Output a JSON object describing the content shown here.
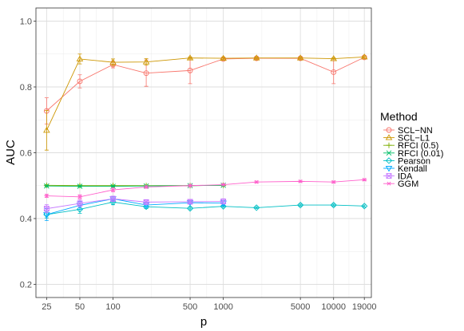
{
  "chart_data": {
    "type": "line",
    "xlabel": "p",
    "ylabel": "AUC",
    "x_scale": "log",
    "xlim": [
      20,
      22000
    ],
    "ylim": [
      0.16,
      1.04
    ],
    "x_ticks": [
      25,
      50,
      100,
      500,
      1000,
      5000,
      10000,
      19000
    ],
    "x_tick_labels": [
      "25",
      "50",
      "100",
      "500",
      "1000",
      "5000",
      "10000",
      "19000"
    ],
    "y_ticks": [
      0.2,
      0.4,
      0.6,
      0.8,
      1.0
    ],
    "y_tick_labels": [
      "0.2",
      "0.4",
      "0.6",
      "0.8",
      "1.0"
    ],
    "grid": true,
    "legend_position": "right",
    "legend_title": "Method",
    "series": [
      {
        "name": "SCL−NN",
        "color": "#F8766D",
        "marker": "circle",
        "x": [
          25,
          50,
          100,
          200,
          500,
          1000,
          2000,
          5000,
          10000,
          19000
        ],
        "y": [
          0.727,
          0.817,
          0.868,
          0.842,
          0.85,
          0.885,
          0.887,
          0.887,
          0.845,
          0.89
        ],
        "err": [
          0.04,
          0.02,
          0.01,
          0.04,
          0.04,
          0.004,
          0.004,
          0.004,
          0.035,
          0.004
        ]
      },
      {
        "name": "SCL−L1",
        "color": "#CD9600",
        "marker": "triangle",
        "x": [
          25,
          50,
          100,
          200,
          500,
          1000,
          2000,
          5000,
          10000,
          19000
        ],
        "y": [
          0.668,
          0.885,
          0.875,
          0.876,
          0.888,
          0.887,
          0.888,
          0.888,
          0.886,
          0.891
        ],
        "err": [
          0.06,
          0.015,
          0.01,
          0.01,
          0.003,
          0.003,
          0.003,
          0.003,
          0.003,
          0.003
        ]
      },
      {
        "name": "RFCI (0.5)",
        "color": "#7CAE00",
        "marker": "plus",
        "x": [
          25,
          50,
          100,
          200,
          500,
          1000
        ],
        "y": [
          0.501,
          0.5,
          0.5,
          0.5,
          0.5,
          0.501
        ],
        "err": [
          0.002,
          0.002,
          0.002,
          0.002,
          0.002,
          0.002
        ]
      },
      {
        "name": "RFCI (0.01)",
        "color": "#00BE67",
        "marker": "cross",
        "x": [
          25,
          50,
          100,
          200,
          500,
          1000
        ],
        "y": [
          0.499,
          0.498,
          0.498,
          0.499,
          0.5,
          0.501
        ],
        "err": [
          0.002,
          0.002,
          0.002,
          0.002,
          0.002,
          0.002
        ]
      },
      {
        "name": "Pearson",
        "color": "#00BFC4",
        "marker": "diamond",
        "x": [
          25,
          50,
          100,
          200,
          500,
          1000,
          2000,
          5000,
          10000,
          19000
        ],
        "y": [
          0.412,
          0.428,
          0.45,
          0.436,
          0.431,
          0.437,
          0.433,
          0.441,
          0.441,
          0.438
        ],
        "err": [
          0.01,
          0.012,
          0.008,
          0.006,
          0.004,
          0.003,
          0.003,
          0.003,
          0.003,
          0.003
        ]
      },
      {
        "name": "Kendall",
        "color": "#00A9FF",
        "marker": "triangle-down",
        "x": [
          25,
          50,
          100,
          200,
          500,
          1000
        ],
        "y": [
          0.412,
          0.44,
          0.46,
          0.441,
          0.448,
          0.447
        ],
        "err": [
          0.018,
          0.012,
          0.008,
          0.007,
          0.004,
          0.008
        ]
      },
      {
        "name": "IDA",
        "color": "#C77CFF",
        "marker": "square-cross",
        "x": [
          25,
          50,
          100,
          200,
          500,
          1000
        ],
        "y": [
          0.43,
          0.446,
          0.46,
          0.45,
          0.451,
          0.452
        ],
        "err": [
          0.012,
          0.01,
          0.008,
          0.006,
          0.005,
          0.008
        ]
      },
      {
        "name": "GGM",
        "color": "#FF61CC",
        "marker": "asterisk",
        "x": [
          25,
          50,
          100,
          200,
          500,
          1000,
          2000,
          5000,
          10000,
          19000
        ],
        "y": [
          0.469,
          0.466,
          0.487,
          0.496,
          0.5,
          0.503,
          0.511,
          0.513,
          0.511,
          0.518
        ],
        "err": [
          0.005,
          0.006,
          0.006,
          0.004,
          0.004,
          0.003,
          0.003,
          0.003,
          0.003,
          0.003
        ]
      }
    ]
  }
}
